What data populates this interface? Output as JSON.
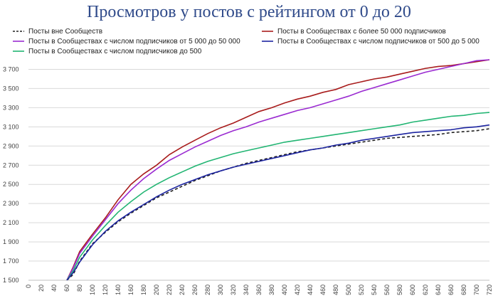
{
  "title": "Просмотров у постов с рейтингом от 0 до 20",
  "chart_data": {
    "type": "line",
    "title": "Просмотров у постов с рейтингом от 0 до 20",
    "xlabel": "",
    "ylabel": "",
    "xlim": [
      0,
      720
    ],
    "ylim": [
      1500,
      3800
    ],
    "xticks": [
      0,
      20,
      40,
      60,
      80,
      100,
      120,
      140,
      160,
      180,
      200,
      220,
      240,
      260,
      280,
      300,
      320,
      340,
      360,
      380,
      400,
      420,
      440,
      460,
      480,
      500,
      520,
      540,
      560,
      580,
      600,
      620,
      640,
      660,
      680,
      700,
      720
    ],
    "yticks": [
      1500,
      1700,
      1900,
      2100,
      2300,
      2500,
      2700,
      2900,
      3100,
      3300,
      3500,
      3700
    ],
    "ytick_labels": [
      "1 500",
      "1 700",
      "1 900",
      "2 100",
      "2 300",
      "2 500",
      "2 700",
      "2 900",
      "3 100",
      "3 300",
      "3 500",
      "3 700"
    ],
    "grid": "horizontal",
    "legend_position": "top",
    "x": [
      60,
      70,
      80,
      100,
      120,
      140,
      160,
      180,
      200,
      220,
      240,
      260,
      280,
      300,
      320,
      340,
      360,
      380,
      400,
      420,
      440,
      460,
      480,
      500,
      520,
      540,
      560,
      580,
      600,
      620,
      640,
      660,
      680,
      700,
      720
    ],
    "series": [
      {
        "name": "Посты вне Сообществ",
        "color": "#222222",
        "dash": true,
        "values": [
          1500,
          1560,
          1700,
          1880,
          2000,
          2110,
          2200,
          2280,
          2360,
          2420,
          2480,
          2540,
          2590,
          2640,
          2680,
          2720,
          2750,
          2780,
          2810,
          2840,
          2860,
          2880,
          2900,
          2920,
          2940,
          2960,
          2980,
          2990,
          3000,
          3010,
          3020,
          3040,
          3050,
          3060,
          3080
        ]
      },
      {
        "name": "Посты в Сообществах с более 50 000 подписчиков",
        "color": "#a81c1c",
        "dash": false,
        "values": [
          1500,
          1640,
          1800,
          1980,
          2150,
          2340,
          2500,
          2610,
          2700,
          2810,
          2890,
          2960,
          3030,
          3090,
          3140,
          3200,
          3260,
          3300,
          3350,
          3390,
          3420,
          3460,
          3490,
          3540,
          3570,
          3600,
          3620,
          3650,
          3680,
          3710,
          3730,
          3740,
          3760,
          3780,
          3800
        ]
      },
      {
        "name": "Посты в Сообществах с числом подписчиков от 5 000 до 50 000",
        "color": "#9a2bd1",
        "dash": false,
        "values": [
          1500,
          1630,
          1780,
          1960,
          2130,
          2300,
          2440,
          2560,
          2660,
          2750,
          2820,
          2890,
          2950,
          3010,
          3060,
          3100,
          3150,
          3190,
          3230,
          3270,
          3300,
          3340,
          3380,
          3420,
          3470,
          3510,
          3550,
          3590,
          3630,
          3670,
          3700,
          3730,
          3760,
          3790,
          3800
        ]
      },
      {
        "name": "Посты в Сообществах с числом подписчиков до 500",
        "color": "#22b573",
        "dash": false,
        "values": [
          1500,
          1600,
          1740,
          1920,
          2070,
          2210,
          2320,
          2420,
          2500,
          2570,
          2630,
          2690,
          2740,
          2780,
          2820,
          2850,
          2880,
          2910,
          2940,
          2960,
          2980,
          3000,
          3020,
          3040,
          3060,
          3080,
          3100,
          3120,
          3150,
          3170,
          3190,
          3210,
          3220,
          3240,
          3250
        ]
      },
      {
        "name": "Посты в Сообществах с числом подписчиков от 500 до 5 000",
        "color": "#1c24a0",
        "dash": false,
        "values": [
          1500,
          1580,
          1690,
          1870,
          2010,
          2120,
          2210,
          2290,
          2370,
          2440,
          2500,
          2550,
          2600,
          2640,
          2680,
          2710,
          2740,
          2770,
          2800,
          2830,
          2860,
          2880,
          2910,
          2930,
          2960,
          2980,
          3000,
          3020,
          3040,
          3050,
          3060,
          3070,
          3090,
          3100,
          3120
        ]
      }
    ]
  },
  "legend": {
    "left_col": [
      "Посты вне Сообществ",
      "Посты в Сообществах с числом подписчиков от 5 000 до 50 000",
      "Посты в Сообществах с числом подписчиков до 500"
    ],
    "right_col": [
      "Посты в Сообществах с более 50 000 подписчиков",
      "Посты в Сообществах с числом подписчиков от 500 до 5 000"
    ]
  }
}
